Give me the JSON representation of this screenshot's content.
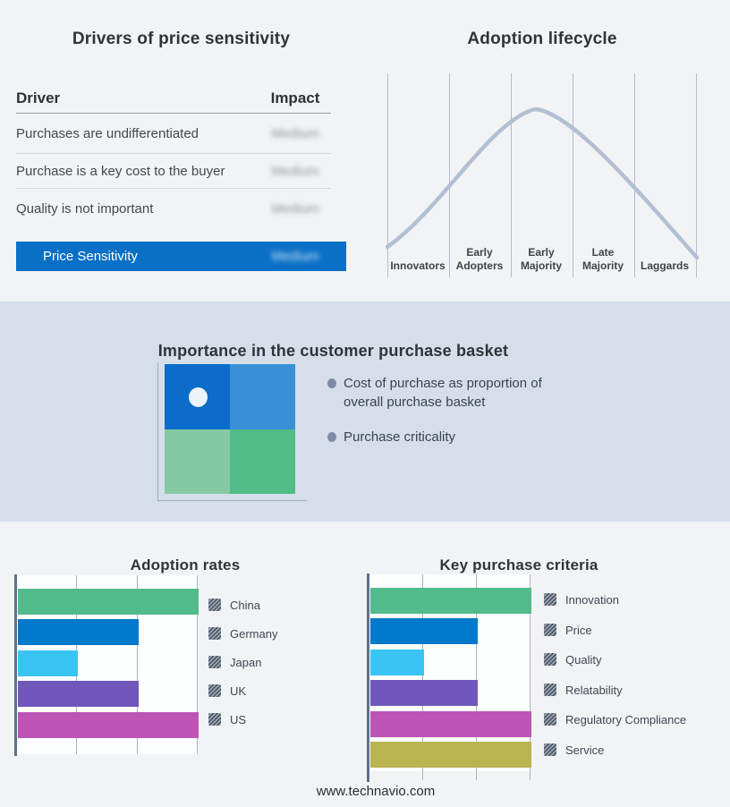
{
  "colors": {
    "accent_blue": "#0a70c6",
    "curve": "#b3bfd3",
    "band_bg": "#d5dee9",
    "grid_line": "#a9b4c6",
    "axis_line": "#5d7190",
    "quadrant": {
      "top_left": "#0b6dc9",
      "top_right": "#3990d6",
      "bottom_left": "#85c9a4",
      "bottom_right": "#51bd86"
    }
  },
  "drivers_panel": {
    "title": "Drivers of price sensitivity",
    "columns": [
      "Driver",
      "Impact"
    ],
    "rows": [
      {
        "driver": "Purchases are undifferentiated",
        "impact": "Medium"
      },
      {
        "driver": "Purchase is a key cost to the buyer",
        "impact": "Medium"
      },
      {
        "driver": "Quality is not important",
        "impact": "Medium"
      }
    ],
    "highlight": {
      "driver": "Price Sensitivity",
      "impact": "Medium"
    }
  },
  "lifecycle_panel": {
    "title": "Adoption lifecycle",
    "stages": [
      "Innovators",
      "Early Adopters",
      "Early Majority",
      "Late Majority",
      "Laggards"
    ]
  },
  "basket_panel": {
    "title": "Importance in the customer purchase basket",
    "bullets": [
      "Cost of purchase as proportion of overall purchase basket",
      "Purchase criticality"
    ]
  },
  "footer": {
    "website": "www.technavio.com"
  },
  "chart_data": [
    {
      "id": "adoption_lifecycle",
      "type": "line",
      "title": "Adoption lifecycle",
      "x_categories": [
        "Innovators",
        "Early Adopters",
        "Early Majority",
        "Late Majority",
        "Laggards"
      ],
      "shape": "bell curve rising from Innovators, peaking at the Early Adopters / Early Majority boundary, falling through Laggards",
      "grid": "vertical category divider lines",
      "legend_position": "none"
    },
    {
      "id": "adoption_rates",
      "type": "bar",
      "orientation": "horizontal",
      "title": "Adoption rates",
      "categories": [
        "China",
        "Germany",
        "Japan",
        "UK",
        "US"
      ],
      "values": [
        3,
        2,
        1,
        2,
        3
      ],
      "xlim": [
        0,
        3
      ],
      "value_note": "unlabeled axis, values read in gridline units",
      "colors": [
        "#52bb8b",
        "#0079ca",
        "#38c5f4",
        "#7156bc",
        "#bd54b6"
      ],
      "grid": true,
      "legend_position": "right"
    },
    {
      "id": "key_purchase_criteria",
      "type": "bar",
      "orientation": "horizontal",
      "title": "Key purchase criteria",
      "categories": [
        "Innovation",
        "Price",
        "Quality",
        "Relatability",
        "Regulatory Compliance",
        "Service"
      ],
      "values": [
        3,
        2,
        1,
        2,
        3,
        3
      ],
      "xlim": [
        0,
        3
      ],
      "value_note": "unlabeled axis, values read in gridline units",
      "colors": [
        "#52bb8b",
        "#0079ca",
        "#38c5f4",
        "#7156bc",
        "#bd54b6",
        "#b9b44f"
      ],
      "grid": true,
      "legend_position": "right"
    },
    {
      "id": "drivers_of_price_sensitivity",
      "type": "table",
      "title": "Drivers of price sensitivity",
      "columns": [
        "Driver",
        "Impact"
      ],
      "rows": [
        [
          "Purchases are undifferentiated",
          "Medium"
        ],
        [
          "Purchase is a key cost to the buyer",
          "Medium"
        ],
        [
          "Quality is not important",
          "Medium"
        ],
        [
          "Price Sensitivity",
          "Medium"
        ]
      ]
    }
  ]
}
